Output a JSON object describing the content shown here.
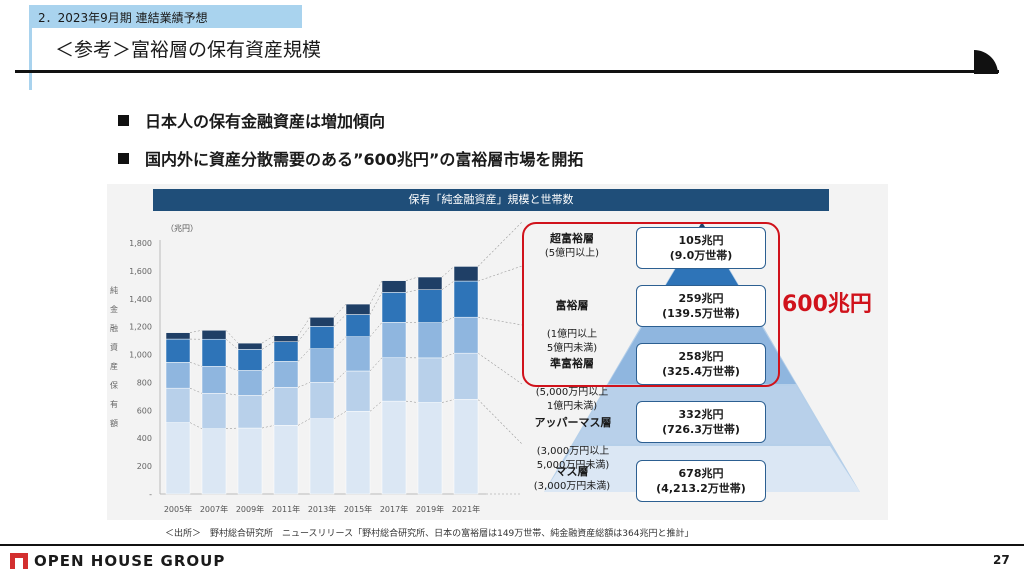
{
  "header": {
    "section": "2．2023年9月期 連結業績予想",
    "title": "＜参考＞富裕層の保有資産規模"
  },
  "bullets": [
    "日本人の保有金融資産は増加傾向",
    "国内外に資産分散需要のある”600兆円”の富裕層市場を開拓"
  ],
  "chart_title": "保有「純金融資産」規模と世帯数",
  "chart_data": {
    "type": "bar",
    "stacked": true,
    "unit_label": "（兆円）",
    "ylabel": "純金融資産保有額",
    "ylim": [
      0,
      1800
    ],
    "yticks": [
      "-",
      "200",
      "400",
      "600",
      "800",
      "1,000",
      "1,200",
      "1,400",
      "1,600",
      "1,800"
    ],
    "categories": [
      "2005年",
      "2007年",
      "2009年",
      "2011年",
      "2013年",
      "2015年",
      "2017年",
      "2019年",
      "2021年"
    ],
    "series": [
      {
        "name": "マス層",
        "color": "#dbe7f4",
        "values": [
          512,
          468,
          473,
          492,
          540,
          593,
          666,
          656,
          678
        ]
      },
      {
        "name": "アッパーマス層",
        "color": "#b8d0ea",
        "values": [
          247,
          254,
          235,
          273,
          260,
          289,
          311,
          320,
          332
        ]
      },
      {
        "name": "準富裕層",
        "color": "#8fb6df",
        "values": [
          185,
          194,
          178,
          186,
          242,
          246,
          254,
          253,
          258
        ]
      },
      {
        "name": "富裕層",
        "color": "#2e74b8",
        "values": [
          167,
          194,
          151,
          141,
          160,
          159,
          215,
          236,
          259
        ]
      },
      {
        "name": "超富裕層",
        "color": "#1f3f66",
        "values": [
          46,
          64,
          45,
          43,
          65,
          75,
          84,
          91,
          105
        ]
      }
    ]
  },
  "tiers": [
    {
      "name": "超富裕層",
      "range": "(5億円以上)",
      "amount": "105兆円",
      "households": "(9.0万世帯)"
    },
    {
      "name": "富裕層",
      "range": "(1億円以上\n5億円未満)",
      "amount": "259兆円",
      "households": "(139.5万世帯)"
    },
    {
      "name": "準富裕層",
      "range": "(5,000万円以上\n1億円未満)",
      "amount": "258兆円",
      "households": "(325.4万世帯)"
    },
    {
      "name": "アッパーマス層",
      "range": "(3,000万円以上\n5,000万円未満)",
      "amount": "332兆円",
      "households": "(726.3万世帯)"
    },
    {
      "name": "マス層",
      "range": "(3,000万円未満)",
      "amount": "678兆円",
      "households": "(4,213.2万世帯)"
    }
  ],
  "highlight": "600兆円",
  "source": "＜出所＞　野村総合研究所　ニュースリリース「野村総合研究所、日本の富裕層は149万世帯、純金融資産総額は364兆円と推計」",
  "footer": {
    "logo": "OPEN HOUSE GROUP",
    "page": "27"
  }
}
